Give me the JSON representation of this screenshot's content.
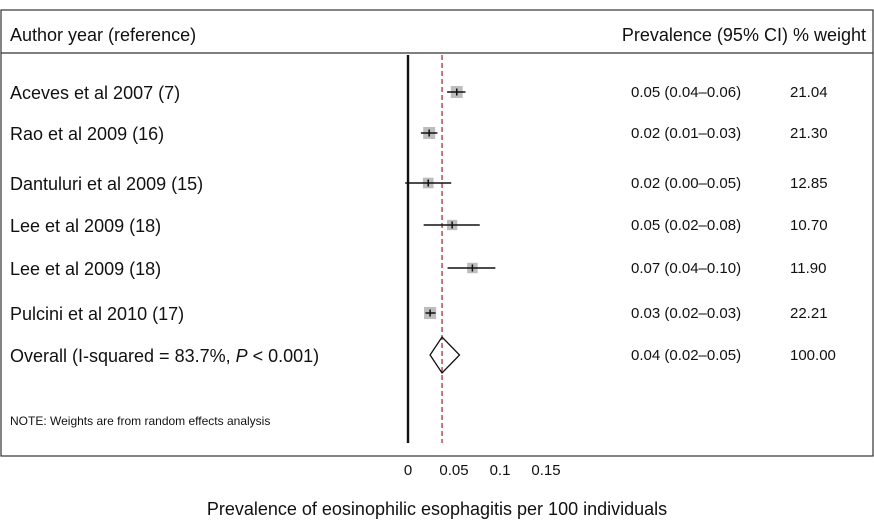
{
  "header": {
    "left": "Author year (reference)",
    "right_prefix": "Prevalence (95% CI)",
    "right_weight": "% weight"
  },
  "note": "NOTE: Weights are from random effects analysis",
  "chart_data": {
    "type": "forest",
    "xlabel": "Prevalence of eosinophilic esophagitis per 100 individuals",
    "xlim": [
      0,
      0.15
    ],
    "x_ticks": [
      "0",
      "0.05",
      "0.1",
      "0.15"
    ],
    "reference_line": 0,
    "overall_line": 0.037,
    "studies": [
      {
        "label": "Aceves et al 2007 (7)",
        "estimate": 0.05,
        "ci": [
          0.04,
          0.06
        ],
        "text": "0.05 (0.04–0.06)",
        "weight": "21.04",
        "ci_plot": [
          0.0425,
          0.0625
        ],
        "est_plot": 0.053
      },
      {
        "label": "Rao et al 2009 (16)",
        "estimate": 0.02,
        "ci": [
          0.01,
          0.03
        ],
        "text": "0.02 (0.01–0.03)",
        "weight": "21.30",
        "ci_plot": [
          0.014,
          0.032
        ],
        "est_plot": 0.023
      },
      {
        "label": "Dantuluri et al 2009 (15)",
        "estimate": 0.02,
        "ci": [
          0.0,
          0.05
        ],
        "text": "0.02 (0.00–0.05)",
        "weight": "12.85",
        "ci_plot": [
          -0.003,
          0.047
        ],
        "est_plot": 0.022
      },
      {
        "label": "Lee et al 2009 (18)",
        "estimate": 0.05,
        "ci": [
          0.02,
          0.08
        ],
        "text": "0.05 (0.02–0.08)",
        "weight": "10.70",
        "ci_plot": [
          0.017,
          0.078
        ],
        "est_plot": 0.048
      },
      {
        "label": "Lee et al 2009 (18)",
        "estimate": 0.07,
        "ci": [
          0.04,
          0.1
        ],
        "text": "0.07 (0.04–0.10)",
        "weight": "11.90",
        "ci_plot": [
          0.043,
          0.095
        ],
        "est_plot": 0.07
      },
      {
        "label": "Pulcini et al 2010 (17)",
        "estimate": 0.03,
        "ci": [
          0.02,
          0.03
        ],
        "text": "0.03 (0.02–0.03)",
        "weight": "22.21",
        "ci_plot": [
          0.019,
          0.03
        ],
        "est_plot": 0.024
      }
    ],
    "overall": {
      "label_prefix": "Overall (I-squared = 83.7%, ",
      "label_p": "P",
      "label_suffix": " < 0.001)",
      "estimate": 0.04,
      "ci": [
        0.02,
        0.05
      ],
      "text": "0.04 (0.02–0.05)",
      "weight": "100.00",
      "diamond": [
        0.024,
        0.037,
        0.056
      ]
    },
    "colors": {
      "box": "#bdbdbd",
      "line": "#111111",
      "overall_line": "#b03030"
    }
  }
}
